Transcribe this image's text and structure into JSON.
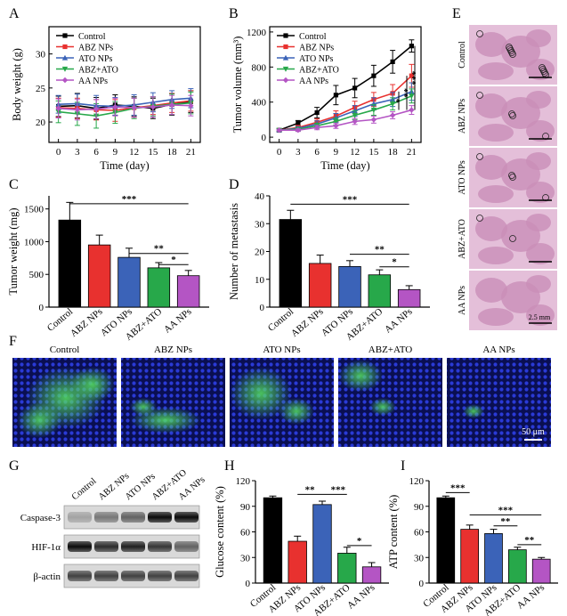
{
  "colors": {
    "Control": "#000000",
    "ABZ NPs": "#e8312f",
    "ATO NPs": "#3b63b8",
    "ABZ+ATO": "#27a84a",
    "AA NPs": "#b455c4",
    "axis": "#000000",
    "histo_bg": "#e4bfd9",
    "histo_tissue": "#c98fb8",
    "fluo_bg": "#0a0f52",
    "fluo_nuclei": "#2a3ad6",
    "fluo_green": "#3fd14a"
  },
  "groups": [
    "Control",
    "ABZ NPs",
    "ATO NPs",
    "ABZ+ATO",
    "AA NPs"
  ],
  "panel_labels": {
    "A": "A",
    "B": "B",
    "C": "C",
    "D": "D",
    "E": "E",
    "F": "F",
    "G": "G",
    "H": "H",
    "I": "I"
  },
  "chart_data": [
    {
      "id": "A",
      "type": "line",
      "xlabel": "Time (day)",
      "ylabel": "Body weight (g)",
      "x": [
        0,
        3,
        6,
        9,
        12,
        15,
        18,
        21
      ],
      "xticks": [
        "0",
        "3",
        "6",
        "9",
        "12",
        "15",
        "18",
        "21"
      ],
      "xlim": [
        -1.5,
        22.5
      ],
      "ylim": [
        17,
        34
      ],
      "yticks": [
        20,
        25,
        30
      ],
      "legend": "top-left",
      "series": [
        {
          "name": "Control",
          "values": [
            22.3,
            22.4,
            22.0,
            22.5,
            22.3,
            22.0,
            22.6,
            23.0
          ],
          "err": [
            1.5,
            1.8,
            1.6,
            1.5,
            1.4,
            1.5,
            1.6,
            1.6
          ]
        },
        {
          "name": "ABZ NPs",
          "values": [
            22.1,
            22.0,
            21.8,
            21.7,
            22.1,
            22.4,
            22.8,
            23.1
          ],
          "err": [
            1.4,
            1.5,
            1.5,
            1.6,
            1.4,
            1.3,
            1.4,
            1.5
          ]
        },
        {
          "name": "ATO NPs",
          "values": [
            22.6,
            22.7,
            22.4,
            22.3,
            22.5,
            22.9,
            23.3,
            23.5
          ],
          "err": [
            1.3,
            1.4,
            1.5,
            1.3,
            1.5,
            1.4,
            1.3,
            1.4
          ]
        },
        {
          "name": "ABZ+ATO",
          "values": [
            21.5,
            21.2,
            20.9,
            21.4,
            22.0,
            22.3,
            22.6,
            22.8
          ],
          "err": [
            1.6,
            1.7,
            1.8,
            1.6,
            1.5,
            1.4,
            1.5,
            1.6
          ]
        },
        {
          "name": "AA NPs",
          "values": [
            22.0,
            21.8,
            21.9,
            22.2,
            22.1,
            22.2,
            22.5,
            22.4
          ],
          "err": [
            1.4,
            1.5,
            1.4,
            1.3,
            1.4,
            1.5,
            1.4,
            1.5
          ]
        }
      ]
    },
    {
      "id": "B",
      "type": "line",
      "xlabel": "Time (day)",
      "ylabel": "Tumor volume (mm³)",
      "x": [
        0,
        3,
        6,
        9,
        12,
        15,
        18,
        21
      ],
      "xticks": [
        "0",
        "3",
        "6",
        "9",
        "12",
        "15",
        "18",
        "21"
      ],
      "xlim": [
        -1.5,
        22.5
      ],
      "ylim": [
        -60,
        1260
      ],
      "yticks": [
        0,
        400,
        800,
        1200
      ],
      "legend": "top-left",
      "series": [
        {
          "name": "Control",
          "values": [
            80,
            160,
            280,
            480,
            560,
            700,
            860,
            1040
          ],
          "err": [
            15,
            30,
            60,
            110,
            110,
            120,
            130,
            70
          ]
        },
        {
          "name": "ABZ NPs",
          "values": [
            80,
            110,
            170,
            240,
            340,
            430,
            500,
            700
          ],
          "err": [
            15,
            25,
            40,
            60,
            70,
            80,
            100,
            130
          ]
        },
        {
          "name": "ATO NPs",
          "values": [
            80,
            100,
            150,
            220,
            300,
            380,
            430,
            520
          ],
          "err": [
            15,
            20,
            35,
            50,
            60,
            70,
            80,
            100
          ]
        },
        {
          "name": "ABZ+ATO",
          "values": [
            80,
            90,
            130,
            180,
            250,
            310,
            380,
            470
          ],
          "err": [
            15,
            20,
            30,
            40,
            50,
            60,
            70,
            80
          ]
        },
        {
          "name": "AA NPs",
          "values": [
            80,
            80,
            110,
            130,
            180,
            200,
            250,
            310
          ],
          "err": [
            10,
            15,
            25,
            30,
            35,
            40,
            40,
            50
          ]
        }
      ],
      "significance": [
        "*",
        "**",
        "***"
      ]
    },
    {
      "id": "C",
      "type": "bar",
      "ylabel": "Tumor weight (mg)",
      "categories": [
        "Control",
        "ABZ NPs",
        "ATO NPs",
        "ABZ+ATO",
        "AA NPs"
      ],
      "values": [
        1330,
        950,
        760,
        600,
        480
      ],
      "err": [
        270,
        150,
        140,
        80,
        80
      ],
      "ylim": [
        0,
        1700
      ],
      "yticks": [
        0,
        500,
        1000,
        1500
      ],
      "significance": [
        "***",
        "**",
        "*"
      ]
    },
    {
      "id": "D",
      "type": "bar",
      "ylabel": "Number of metastasis",
      "categories": [
        "Control",
        "ABZ NPs",
        "ATO NPs",
        "ABZ+ATO",
        "AA NPs"
      ],
      "values": [
        31.5,
        15.7,
        14.6,
        11.6,
        6.3
      ],
      "err": [
        3.3,
        3.0,
        2.1,
        1.8,
        1.4
      ],
      "ylim": [
        0,
        40
      ],
      "yticks": [
        0,
        10,
        20,
        30,
        40
      ],
      "significance": [
        "***",
        "**",
        "*"
      ]
    },
    {
      "id": "H",
      "type": "bar",
      "ylabel": "Glucose content (%)",
      "categories": [
        "Control",
        "ABZ NPs",
        "ATO NPs",
        "ABZ+ATO",
        "AA NPs"
      ],
      "values": [
        100,
        49,
        92,
        35,
        19
      ],
      "err": [
        2,
        6,
        4,
        7,
        5
      ],
      "ylim": [
        0,
        120
      ],
      "yticks": [
        0,
        30,
        60,
        90,
        120
      ],
      "significance": [
        "**",
        "***",
        "*"
      ]
    },
    {
      "id": "I",
      "type": "bar",
      "ylabel": "ATP content (%)",
      "categories": [
        "Control",
        "ABZ NPs",
        "ATO NPs",
        "ABZ+ATO",
        "AA NPs"
      ],
      "values": [
        100,
        63,
        58,
        39,
        28
      ],
      "err": [
        2,
        5,
        5,
        3,
        2
      ],
      "ylim": [
        0,
        120
      ],
      "yticks": [
        0,
        30,
        60,
        90,
        120
      ],
      "significance": [
        "***",
        "***",
        "**",
        "**"
      ]
    }
  ],
  "panel_E": {
    "labels": [
      "Control",
      "ABZ NPs",
      "ATO NPs",
      "ABZ+ATO",
      "AA NPs"
    ],
    "scale": "2.5 mm"
  },
  "panel_F": {
    "labels": [
      "Control",
      "ABZ NPs",
      "ATO NPs",
      "ABZ+ATO",
      "AA NPs"
    ],
    "scale": "50 μm"
  },
  "panel_G": {
    "lanes": [
      "Control",
      "ABZ NPs",
      "ATO NPs",
      "ABZ+ATO",
      "AA NPs"
    ],
    "rows": [
      "Caspase-3",
      "HIF-1α",
      "β-actin"
    ]
  }
}
